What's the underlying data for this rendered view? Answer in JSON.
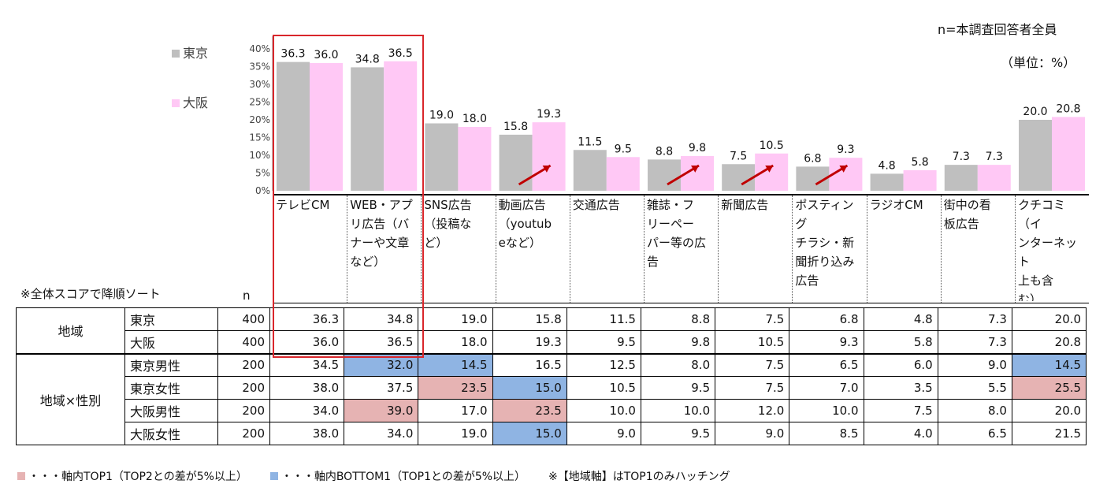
{
  "header": {
    "base_note": "n=本調査回答者全員",
    "unit_note": "（単位：%）",
    "sort_note": "※全体スコアで降順ソート",
    "n_label": "n"
  },
  "legend": [
    {
      "label": "東京",
      "color": "#bfbfbf"
    },
    {
      "label": "大阪",
      "color": "#ffc8f5"
    }
  ],
  "chart_data": {
    "type": "bar",
    "categories": [
      "テレビCM",
      "WEB・アプリ広告（バナーや文章など）",
      "SNS広告（投稿など）",
      "動画広告（youtubeなど）",
      "交通広告",
      "雑誌・フリーペーパー等の広告",
      "新聞広告",
      "ポスティングチラシ・新聞折り込み広告",
      "ラジオCM",
      "街中の看板広告",
      "クチコミ（インターネット上も含む）"
    ],
    "category_lines": [
      [
        "テレビCM"
      ],
      [
        "WEB・アプ",
        "リ広告（バ",
        "ナーや文章",
        "など）"
      ],
      [
        "SNS広告",
        "（投稿な",
        "ど）"
      ],
      [
        "動画広告",
        "（youtub",
        "eなど）"
      ],
      [
        "交通広告"
      ],
      [
        "雑誌・フ",
        "リーペー",
        "パー等の広",
        "告"
      ],
      [
        "新聞広告"
      ],
      [
        "ポスティング",
        "チラシ・新",
        "聞折り込み",
        "広告"
      ],
      [
        "ラジオCM"
      ],
      [
        "街中の看",
        "板広告"
      ],
      [
        "クチコミ（イ",
        "ンターネット",
        "上も含",
        "む）"
      ]
    ],
    "series": [
      {
        "name": "東京",
        "values": [
          36.3,
          34.8,
          19.0,
          15.8,
          11.5,
          8.8,
          7.5,
          6.8,
          4.8,
          7.3,
          20.0
        ],
        "color": "#bfbfbf"
      },
      {
        "name": "大阪",
        "values": [
          36.0,
          36.5,
          18.0,
          19.3,
          9.5,
          9.8,
          10.5,
          9.3,
          5.8,
          7.3,
          20.8
        ],
        "color": "#ffc8f5"
      }
    ],
    "y_ticks": [
      "0%",
      "5%",
      "10%",
      "15%",
      "20%",
      "25%",
      "30%",
      "35%",
      "40%"
    ],
    "ylim": [
      0,
      40
    ],
    "arrows_on": [
      3,
      5,
      6,
      7
    ]
  },
  "table": {
    "groups": [
      {
        "label": "地域",
        "rows": [
          {
            "name": "東京",
            "n": "400",
            "values": [
              "36.3",
              "34.8",
              "19.0",
              "15.8",
              "11.5",
              "8.8",
              "7.5",
              "6.8",
              "4.8",
              "7.3",
              "20.0"
            ],
            "hl": [
              "",
              "",
              "",
              "",
              "",
              "",
              "",
              "",
              "",
              "",
              ""
            ]
          },
          {
            "name": "大阪",
            "n": "400",
            "values": [
              "36.0",
              "36.5",
              "18.0",
              "19.3",
              "9.5",
              "9.8",
              "10.5",
              "9.3",
              "5.8",
              "7.3",
              "20.8"
            ],
            "hl": [
              "",
              "",
              "",
              "",
              "",
              "",
              "",
              "",
              "",
              "",
              ""
            ]
          }
        ]
      },
      {
        "label": "地域×性別",
        "rows": [
          {
            "name": "東京男性",
            "n": "200",
            "values": [
              "34.5",
              "32.0",
              "14.5",
              "16.5",
              "12.5",
              "8.0",
              "7.5",
              "6.5",
              "6.0",
              "9.0",
              "14.5"
            ],
            "hl": [
              "",
              "bot",
              "bot",
              "",
              "",
              "",
              "",
              "",
              "",
              "",
              "bot"
            ]
          },
          {
            "name": "東京女性",
            "n": "200",
            "values": [
              "38.0",
              "37.5",
              "23.5",
              "15.0",
              "10.5",
              "9.5",
              "7.5",
              "7.0",
              "3.5",
              "5.5",
              "25.5"
            ],
            "hl": [
              "",
              "",
              "top",
              "bot",
              "",
              "",
              "",
              "",
              "",
              "",
              "top"
            ]
          },
          {
            "name": "大阪男性",
            "n": "200",
            "values": [
              "34.0",
              "39.0",
              "17.0",
              "23.5",
              "10.0",
              "10.0",
              "12.0",
              "10.0",
              "7.5",
              "8.0",
              "20.0"
            ],
            "hl": [
              "",
              "top",
              "",
              "top",
              "",
              "",
              "",
              "",
              "",
              "",
              ""
            ]
          },
          {
            "name": "大阪女性",
            "n": "200",
            "values": [
              "38.0",
              "34.0",
              "19.0",
              "15.0",
              "9.0",
              "9.5",
              "9.0",
              "8.5",
              "4.0",
              "6.5",
              "21.5"
            ],
            "hl": [
              "",
              "",
              "",
              "bot",
              "",
              "",
              "",
              "",
              "",
              "",
              ""
            ]
          }
        ]
      }
    ]
  },
  "footer": {
    "top_label": "・・・軸内TOP1（TOP2との差が5%以上）",
    "bottom_label": "・・・軸内BOTTOM1（TOP1との差が5%以上）",
    "note": "※【地域軸】はTOP1のみハッチング",
    "top_color": "#e6b3b3",
    "bottom_color": "#8fb4e3"
  }
}
